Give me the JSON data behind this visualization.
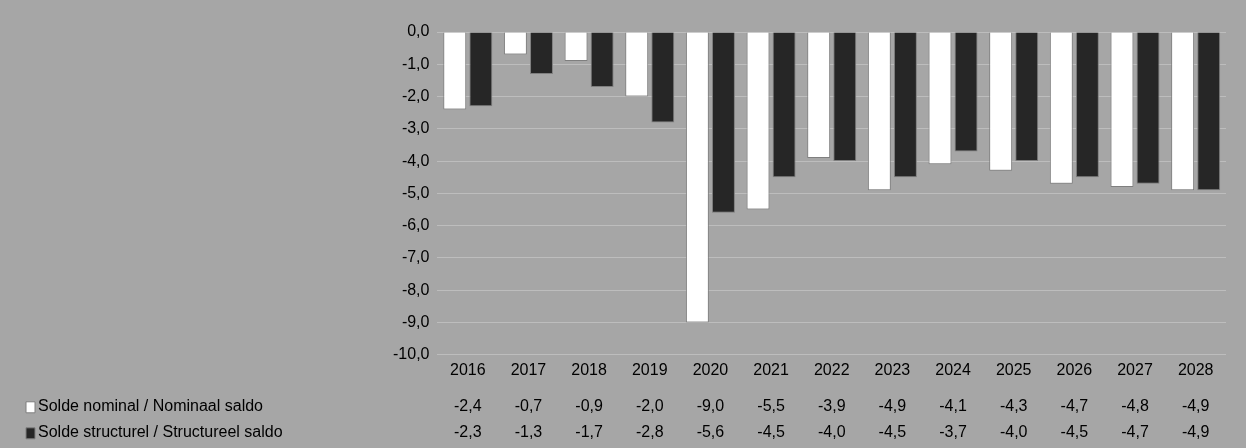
{
  "chart_data": {
    "type": "bar",
    "categories": [
      "2016",
      "2017",
      "2018",
      "2019",
      "2020",
      "2021",
      "2022",
      "2023",
      "2024",
      "2025",
      "2026",
      "2027",
      "2028"
    ],
    "series": [
      {
        "name": "Solde nominal / Nominaal saldo",
        "color": "#ffffff",
        "values": [
          -2.4,
          -0.7,
          -0.9,
          -2.0,
          -9.0,
          -5.5,
          -3.9,
          -4.9,
          -4.1,
          -4.3,
          -4.7,
          -4.8,
          -4.9
        ],
        "value_labels": [
          "-2,4",
          "-0,7",
          "-0,9",
          "-2,0",
          "-9,0",
          "-5,5",
          "-3,9",
          "-4,9",
          "-4,1",
          "-4,3",
          "-4,7",
          "-4,8",
          "-4,9"
        ]
      },
      {
        "name": "Solde structurel / Structureel saldo",
        "color": "#262626",
        "values": [
          -2.3,
          -1.3,
          -1.7,
          -2.8,
          -5.6,
          -4.5,
          -4.0,
          -4.5,
          -3.7,
          -4.0,
          -4.5,
          -4.7,
          -4.9
        ],
        "value_labels": [
          "-2,3",
          "-1,3",
          "-1,7",
          "-2,8",
          "-5,6",
          "-4,5",
          "-4,0",
          "-4,5",
          "-3,7",
          "-4,0",
          "-4,5",
          "-4,7",
          "-4,9"
        ]
      }
    ],
    "ylim": [
      -10,
      0
    ],
    "yticks": [
      {
        "value": 0,
        "label": "0,0"
      },
      {
        "value": -1,
        "label": "-1,0"
      },
      {
        "value": -2,
        "label": "-2,0"
      },
      {
        "value": -3,
        "label": "-3,0"
      },
      {
        "value": -4,
        "label": "-4,0"
      },
      {
        "value": -5,
        "label": "-5,0"
      },
      {
        "value": -6,
        "label": "-6,0"
      },
      {
        "value": -7,
        "label": "-7,0"
      },
      {
        "value": -8,
        "label": "-8,0"
      },
      {
        "value": -9,
        "label": "-9,0"
      },
      {
        "value": -10,
        "label": "-10,0"
      }
    ],
    "grid": "y",
    "legend": "bottom"
  }
}
